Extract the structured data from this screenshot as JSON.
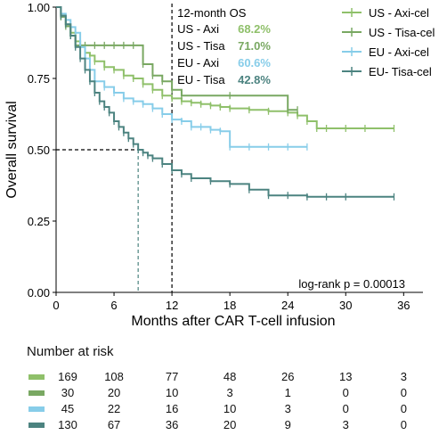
{
  "chart_data": {
    "type": "line",
    "step": true,
    "xlabel": "Months after CAR T-cell infusion",
    "ylabel": "Overall survival",
    "xlim": [
      0,
      38
    ],
    "ylim": [
      0,
      1
    ],
    "x_ticks": [
      0,
      6,
      12,
      18,
      24,
      30,
      36
    ],
    "y_ticks": [
      0,
      0.25,
      0.5,
      0.75,
      1
    ],
    "x_tick_labels": [
      "0",
      "6",
      "12",
      "18",
      "24",
      "30",
      "36"
    ],
    "y_tick_labels": [
      "0.00",
      "0.25",
      "0.50",
      "0.75",
      "1.00"
    ],
    "legend_position": "top-right",
    "series": [
      {
        "name": "US - Axi-cel",
        "color": "#8fc06a",
        "x": [
          0,
          0.5,
          1,
          1.5,
          2,
          2.5,
          3,
          3.5,
          4,
          5,
          6,
          7,
          8,
          9,
          10,
          11,
          12,
          13,
          14,
          15,
          16,
          17,
          18,
          20,
          22,
          24,
          25,
          26,
          27,
          28,
          30,
          32,
          35
        ],
        "y": [
          1.0,
          0.97,
          0.94,
          0.91,
          0.88,
          0.86,
          0.84,
          0.83,
          0.81,
          0.79,
          0.78,
          0.76,
          0.75,
          0.73,
          0.71,
          0.69,
          0.68,
          0.67,
          0.665,
          0.66,
          0.655,
          0.65,
          0.645,
          0.64,
          0.635,
          0.63,
          0.62,
          0.6,
          0.575,
          0.575,
          0.575,
          0.575,
          0.575
        ]
      },
      {
        "name": "US - Tisa-cel",
        "color": "#79a862",
        "x": [
          0,
          0.5,
          1,
          1.5,
          2,
          3,
          4,
          5,
          6,
          7,
          8,
          9,
          10,
          11,
          12,
          13,
          18,
          24,
          25
        ],
        "y": [
          1.0,
          0.966,
          0.933,
          0.9,
          0.866,
          0.866,
          0.866,
          0.866,
          0.866,
          0.866,
          0.866,
          0.8,
          0.76,
          0.74,
          0.71,
          0.69,
          0.69,
          0.64,
          0.64
        ]
      },
      {
        "name": "EU - Axi-cel",
        "color": "#87cde9",
        "x": [
          0,
          0.5,
          1,
          1.5,
          2,
          2.5,
          3,
          3.5,
          4,
          5,
          6,
          7,
          8,
          9,
          10,
          11,
          12,
          13,
          14,
          15,
          16,
          17,
          18,
          20,
          22,
          24,
          26
        ],
        "y": [
          1.0,
          0.977,
          0.955,
          0.93,
          0.91,
          0.86,
          0.82,
          0.78,
          0.74,
          0.72,
          0.7,
          0.68,
          0.67,
          0.66,
          0.645,
          0.625,
          0.606,
          0.6,
          0.58,
          0.58,
          0.57,
          0.565,
          0.51,
          0.51,
          0.51,
          0.51,
          0.51
        ]
      },
      {
        "name": "EU- Tisa-cel",
        "color": "#4c8380",
        "x": [
          0,
          0.5,
          1,
          1.5,
          2,
          2.5,
          3,
          3.5,
          4,
          4.5,
          5,
          5.5,
          6,
          6.5,
          7,
          7.5,
          8,
          8.5,
          9,
          9.5,
          10,
          11,
          12,
          13,
          14,
          16,
          18,
          20,
          22,
          24,
          26,
          28,
          30,
          35
        ],
        "y": [
          1.0,
          0.97,
          0.94,
          0.9,
          0.86,
          0.82,
          0.78,
          0.74,
          0.7,
          0.67,
          0.65,
          0.63,
          0.6,
          0.58,
          0.56,
          0.54,
          0.52,
          0.5,
          0.49,
          0.48,
          0.47,
          0.45,
          0.428,
          0.415,
          0.4,
          0.39,
          0.38,
          0.36,
          0.34,
          0.34,
          0.335,
          0.335,
          0.335,
          0.335
        ]
      }
    ],
    "reference_lines": {
      "twelve_month_x": 12,
      "median_y": 0.5,
      "median_x": 8.5
    },
    "annotation": {
      "header": "12-month OS",
      "rows": [
        {
          "label": "US - Axi",
          "value": "68.2%",
          "color": "#8fc06a"
        },
        {
          "label": "US - Tisa",
          "value": "71.0%",
          "color": "#79a862"
        },
        {
          "label": "EU - Axi",
          "value": "60.6%",
          "color": "#87cde9"
        },
        {
          "label": "EU - Tisa",
          "value": "42.8%",
          "color": "#4c8380"
        }
      ]
    },
    "pvalue_text": "log-rank p = 0.00013"
  },
  "risk_table": {
    "title": "Number at risk",
    "rows": [
      {
        "color": "#8fc06a",
        "values": [
          "169",
          "108",
          "77",
          "48",
          "26",
          "13",
          "3"
        ]
      },
      {
        "color": "#79a862",
        "values": [
          "30",
          "20",
          "10",
          "3",
          "1",
          "0",
          "0"
        ]
      },
      {
        "color": "#87cde9",
        "values": [
          "45",
          "22",
          "16",
          "10",
          "3",
          "0",
          "0"
        ]
      },
      {
        "color": "#4c8380",
        "values": [
          "130",
          "67",
          "36",
          "20",
          "9",
          "3",
          "0"
        ]
      }
    ]
  }
}
